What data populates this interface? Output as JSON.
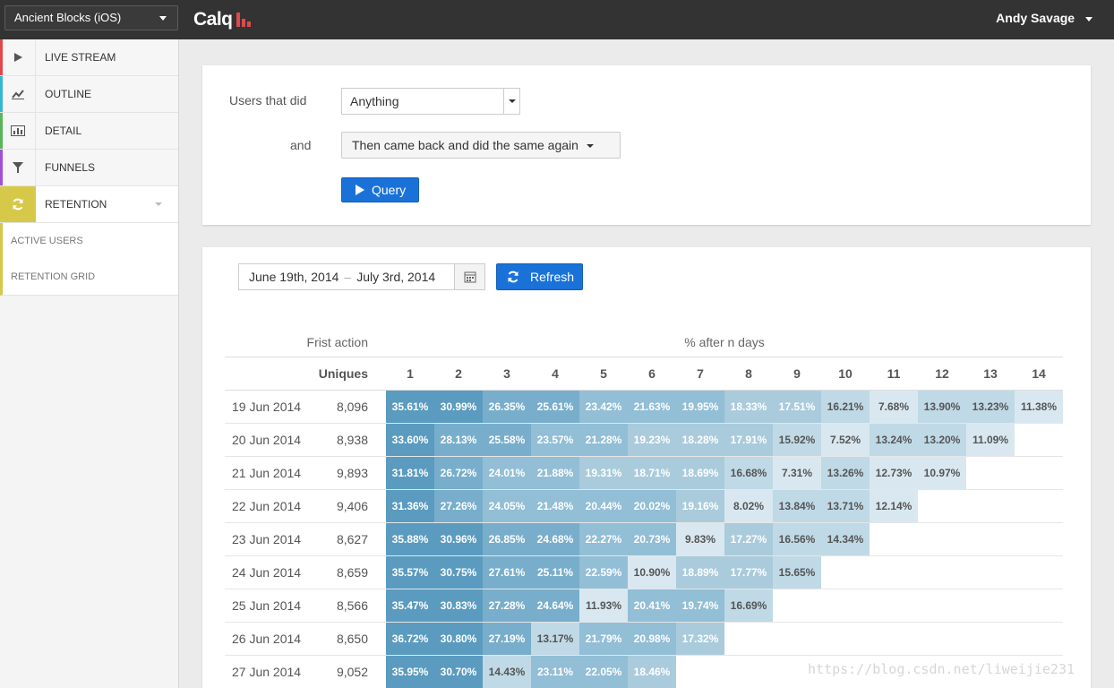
{
  "topbar": {
    "app_select": "Ancient Blocks (iOS)",
    "logo": "Calq",
    "user_name": "Andy Savage"
  },
  "sidebar": {
    "items": [
      {
        "label": "LIVE STREAM",
        "icon": "play-icon",
        "color": "#e2474a"
      },
      {
        "label": "OUTLINE",
        "icon": "line-chart-icon",
        "color": "#37b6d2"
      },
      {
        "label": "DETAIL",
        "icon": "bar-chart-icon",
        "color": "#59b65a"
      },
      {
        "label": "FUNNELS",
        "icon": "filter-icon",
        "color": "#a24ed6"
      },
      {
        "label": "RETENTION",
        "icon": "refresh-icon",
        "color": "#d6c94a"
      }
    ],
    "sub_items": [
      {
        "label": "ACTIVE USERS"
      },
      {
        "label": "RETENTION GRID"
      }
    ]
  },
  "query": {
    "label1": "Users that did",
    "select1": "Anything",
    "label2": "and",
    "select2": "Then came back and did the same again",
    "button": "Query"
  },
  "report": {
    "date_start": "June 19th, 2014",
    "date_sep": "–",
    "date_end": "July 3rd, 2014",
    "refresh": "Refresh",
    "first_action_header": "Frist action",
    "percent_header": "% after n days",
    "uniques_header": "Uniques",
    "days": [
      "1",
      "2",
      "3",
      "4",
      "5",
      "6",
      "7",
      "8",
      "9",
      "10",
      "11",
      "12",
      "13",
      "14"
    ],
    "rows": [
      {
        "date": "19 Jun 2014",
        "uniques": "8,096",
        "values": [
          "35.61%",
          "30.99%",
          "26.35%",
          "25.61%",
          "23.42%",
          "21.63%",
          "19.95%",
          "18.33%",
          "17.51%",
          "16.21%",
          "7.68%",
          "13.90%",
          "13.23%",
          "11.38%"
        ]
      },
      {
        "date": "20 Jun 2014",
        "uniques": "8,938",
        "values": [
          "33.60%",
          "28.13%",
          "25.58%",
          "23.57%",
          "21.28%",
          "19.23%",
          "18.28%",
          "17.91%",
          "15.92%",
          "7.52%",
          "13.24%",
          "13.20%",
          "11.09%",
          ""
        ]
      },
      {
        "date": "21 Jun 2014",
        "uniques": "9,893",
        "values": [
          "31.81%",
          "26.72%",
          "24.01%",
          "21.88%",
          "19.31%",
          "18.71%",
          "18.69%",
          "16.68%",
          "7.31%",
          "13.26%",
          "12.73%",
          "10.97%",
          "",
          ""
        ]
      },
      {
        "date": "22 Jun 2014",
        "uniques": "9,406",
        "values": [
          "31.36%",
          "27.26%",
          "24.05%",
          "21.48%",
          "20.44%",
          "20.02%",
          "19.16%",
          "8.02%",
          "13.84%",
          "13.71%",
          "12.14%",
          "",
          "",
          ""
        ]
      },
      {
        "date": "23 Jun 2014",
        "uniques": "8,627",
        "values": [
          "35.88%",
          "30.96%",
          "26.85%",
          "24.68%",
          "22.27%",
          "20.73%",
          "9.83%",
          "17.27%",
          "16.56%",
          "14.34%",
          "",
          "",
          "",
          ""
        ]
      },
      {
        "date": "24 Jun 2014",
        "uniques": "8,659",
        "values": [
          "35.57%",
          "30.75%",
          "27.61%",
          "25.11%",
          "22.59%",
          "10.90%",
          "18.89%",
          "17.77%",
          "15.65%",
          "",
          "",
          "",
          "",
          ""
        ]
      },
      {
        "date": "25 Jun 2014",
        "uniques": "8,566",
        "values": [
          "35.47%",
          "30.83%",
          "27.28%",
          "24.64%",
          "11.93%",
          "20.41%",
          "19.74%",
          "16.69%",
          "",
          "",
          "",
          "",
          "",
          ""
        ]
      },
      {
        "date": "26 Jun 2014",
        "uniques": "8,650",
        "values": [
          "36.72%",
          "30.80%",
          "27.19%",
          "13.17%",
          "21.79%",
          "20.98%",
          "17.32%",
          "",
          "",
          "",
          "",
          "",
          "",
          ""
        ]
      },
      {
        "date": "27 Jun 2014",
        "uniques": "9,052",
        "values": [
          "35.95%",
          "30.70%",
          "14.43%",
          "23.11%",
          "22.05%",
          "18.46%",
          "",
          "",
          "",
          "",
          "",
          "",
          "",
          ""
        ]
      }
    ]
  },
  "watermark": "https://blog.csdn.net/liweijie231"
}
